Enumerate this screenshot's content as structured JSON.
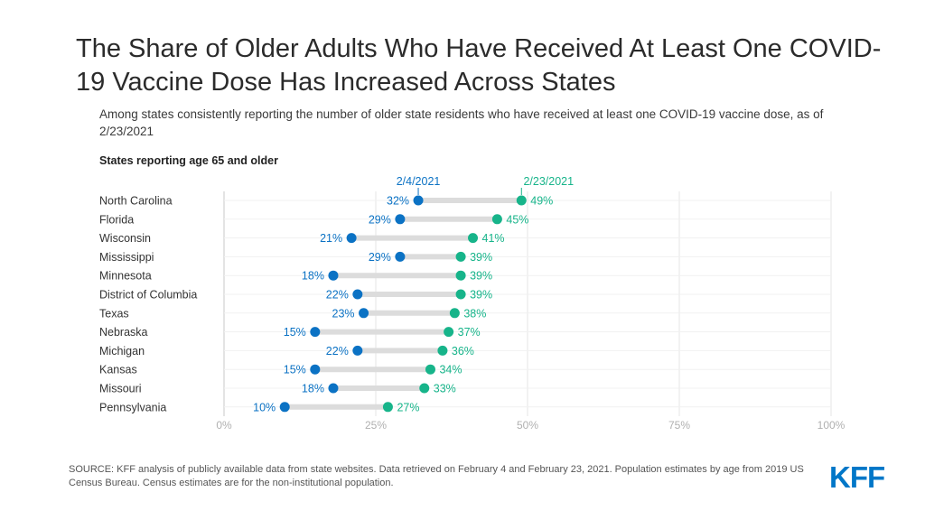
{
  "title": "The Share of Older Adults Who Have Received At Least One COVID-19 Vaccine Dose Has Increased Across States",
  "subtitle": "Among states consistently reporting the number of older state residents who have received at least one COVID-19 vaccine dose, as of 2/23/2021",
  "source": "SOURCE: KFF analysis of publicly available data from state websites. Data retrieved on February 4 and February 23, 2021. Population estimates by age from 2019 US Census Bureau. Census estimates are for the non-institutional  population.",
  "logo": "KFF",
  "colors": {
    "series1": "#0b72c4",
    "series2": "#17b48a",
    "connector": "#dcdcdc",
    "grid": "#e4e4e4",
    "axis_text": "#b0b0b0"
  },
  "chart_data": {
    "type": "dumbbell",
    "title": "States reporting age 65 and older",
    "categories": [
      "North Carolina",
      "Florida",
      "Wisconsin",
      "Mississippi",
      "Minnesota",
      "District of Columbia",
      "Texas",
      "Nebraska",
      "Michigan",
      "Kansas",
      "Missouri",
      "Pennsylvania"
    ],
    "series": [
      {
        "name": "2/4/2021",
        "values": [
          32,
          29,
          21,
          29,
          18,
          22,
          23,
          15,
          22,
          15,
          18,
          10
        ]
      },
      {
        "name": "2/23/2021",
        "values": [
          49,
          45,
          41,
          39,
          39,
          39,
          38,
          37,
          36,
          34,
          33,
          27
        ]
      }
    ],
    "xlim": [
      0,
      100
    ],
    "xticks": [
      0,
      25,
      50,
      75,
      100
    ],
    "xtick_labels": [
      "0%",
      "25%",
      "50%",
      "75%",
      "100%"
    ],
    "value_suffix": "%",
    "grid": true,
    "legend": "labels above first row"
  }
}
